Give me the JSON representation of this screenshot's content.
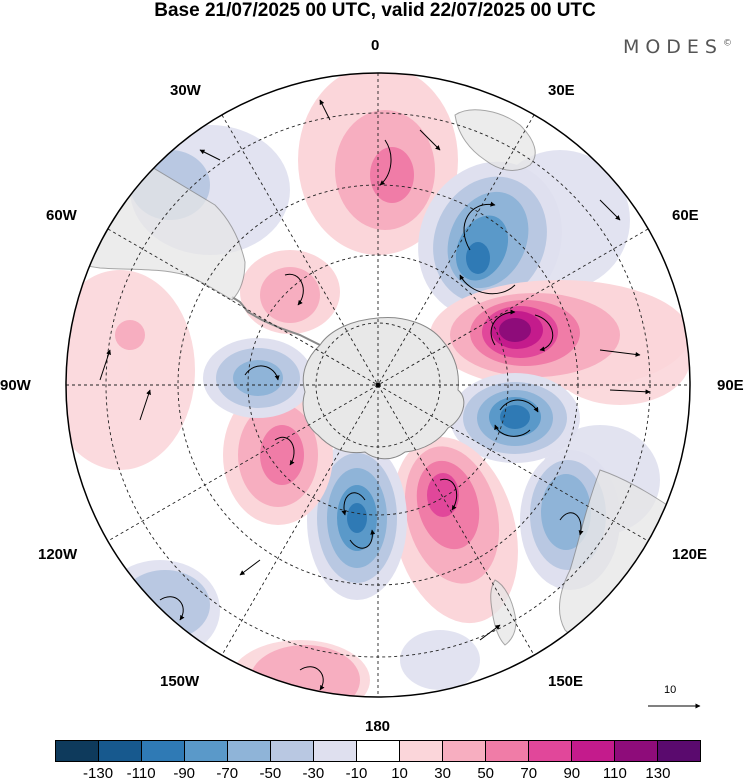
{
  "header": {
    "title": "Base 21/07/2025 00 UTC, valid 22/07/2025 00 UTC",
    "brand": "MODES",
    "brand_mark": "©"
  },
  "longitude_labels": {
    "lon_0": "0",
    "lon_30e": "30E",
    "lon_60e": "60E",
    "lon_90e": "90E",
    "lon_120e": "120E",
    "lon_150e": "150E",
    "lon_180": "180",
    "lon_150w": "150W",
    "lon_120w": "120W",
    "lon_90w": "90W",
    "lon_60w": "60W",
    "lon_30w": "30W"
  },
  "reference_vector": {
    "label": "10"
  },
  "legend": {
    "ticks": [
      "-130",
      "-110",
      "-90",
      "-70",
      "-50",
      "-30",
      "-10",
      "10",
      "30",
      "50",
      "70",
      "90",
      "110",
      "130"
    ],
    "colors": [
      "#0e3a5c",
      "#17598e",
      "#2f7ab5",
      "#5a99c9",
      "#8fb4d8",
      "#b9c8e2",
      "#dfe0ef",
      "#ffffff",
      "#fbd6da",
      "#f7aec0",
      "#f07ca7",
      "#e1479a",
      "#c41b8c",
      "#8e0c7a",
      "#5a0a6e"
    ]
  },
  "map_data": {
    "projection": "south-polar-stereographic",
    "anomalies": [
      {
        "name": "anomaly-positive-0",
        "value": 70
      },
      {
        "name": "anomaly-negative-45e",
        "value": -90
      },
      {
        "name": "anomaly-positive-75e",
        "value": 130
      },
      {
        "name": "anomaly-negative-100e",
        "value": -110
      },
      {
        "name": "anomaly-negative-125e",
        "value": -70
      },
      {
        "name": "anomaly-positive-155e",
        "value": 90
      },
      {
        "name": "anomaly-negative-170w",
        "value": -110
      },
      {
        "name": "anomaly-positive-125w",
        "value": 70
      },
      {
        "name": "anomaly-negative-90w",
        "value": -70
      },
      {
        "name": "anomaly-positive-55w",
        "value": 50
      },
      {
        "name": "anomaly-positive-160w",
        "value": 50
      },
      {
        "name": "anomaly-negative-140w",
        "value": -50
      },
      {
        "name": "anomaly-negative-50w",
        "value": -30
      },
      {
        "name": "anomaly-positive-85w",
        "value": 30
      }
    ]
  }
}
